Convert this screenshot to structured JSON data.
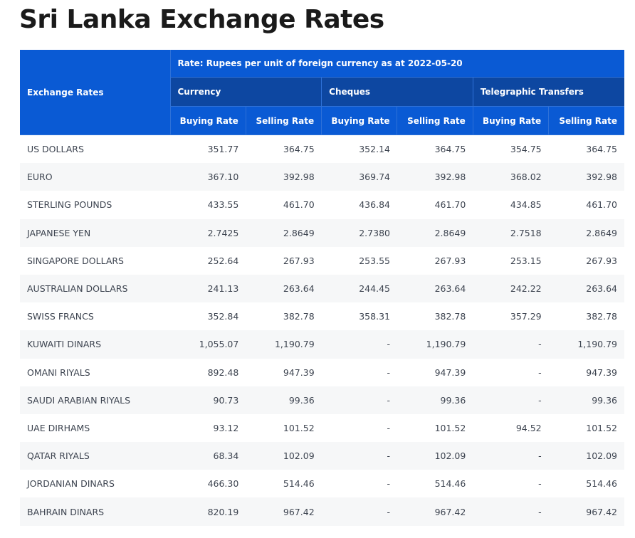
{
  "page_title": "Sri Lanka Exchange Rates",
  "table": {
    "corner_label": "Exchange Rates",
    "rate_caption": "Rate: Rupees per unit of foreign currency as at 2022-05-20",
    "groups": [
      "Currency",
      "Cheques",
      "Telegraphic Transfers"
    ],
    "sub_headers": [
      "Buying Rate",
      "Selling Rate",
      "Buying Rate",
      "Selling Rate",
      "Buying Rate",
      "Selling Rate"
    ],
    "rows": [
      {
        "name": "US DOLLARS",
        "values": [
          "351.77",
          "364.75",
          "352.14",
          "364.75",
          "354.75",
          "364.75"
        ]
      },
      {
        "name": "EURO",
        "values": [
          "367.10",
          "392.98",
          "369.74",
          "392.98",
          "368.02",
          "392.98"
        ]
      },
      {
        "name": "STERLING POUNDS",
        "values": [
          "433.55",
          "461.70",
          "436.84",
          "461.70",
          "434.85",
          "461.70"
        ]
      },
      {
        "name": "JAPANESE YEN",
        "values": [
          "2.7425",
          "2.8649",
          "2.7380",
          "2.8649",
          "2.7518",
          "2.8649"
        ]
      },
      {
        "name": "SINGAPORE DOLLARS",
        "values": [
          "252.64",
          "267.93",
          "253.55",
          "267.93",
          "253.15",
          "267.93"
        ]
      },
      {
        "name": "AUSTRALIAN DOLLARS",
        "values": [
          "241.13",
          "263.64",
          "244.45",
          "263.64",
          "242.22",
          "263.64"
        ]
      },
      {
        "name": "SWISS FRANCS",
        "values": [
          "352.84",
          "382.78",
          "358.31",
          "382.78",
          "357.29",
          "382.78"
        ]
      },
      {
        "name": "KUWAITI DINARS",
        "values": [
          "1,055.07",
          "1,190.79",
          "-",
          "1,190.79",
          "-",
          "1,190.79"
        ]
      },
      {
        "name": "OMANI RIYALS",
        "values": [
          "892.48",
          "947.39",
          "-",
          "947.39",
          "-",
          "947.39"
        ]
      },
      {
        "name": "SAUDI ARABIAN RIYALS",
        "values": [
          "90.73",
          "99.36",
          "-",
          "99.36",
          "-",
          "99.36"
        ]
      },
      {
        "name": "UAE DIRHAMS",
        "values": [
          "93.12",
          "101.52",
          "-",
          "101.52",
          "94.52",
          "101.52"
        ]
      },
      {
        "name": "QATAR RIYALS",
        "values": [
          "68.34",
          "102.09",
          "-",
          "102.09",
          "-",
          "102.09"
        ]
      },
      {
        "name": "JORDANIAN DINARS",
        "values": [
          "466.30",
          "514.46",
          "-",
          "514.46",
          "-",
          "514.46"
        ]
      },
      {
        "name": "BAHRAIN DINARS",
        "values": [
          "820.19",
          "967.42",
          "-",
          "967.42",
          "-",
          "967.42"
        ]
      }
    ]
  }
}
